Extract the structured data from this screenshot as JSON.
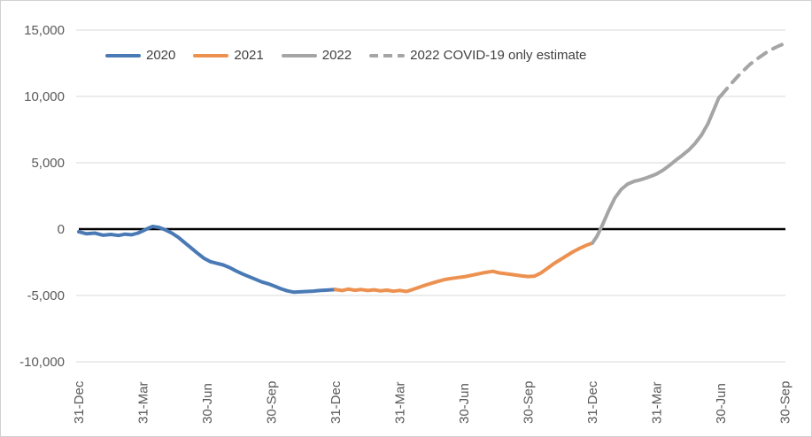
{
  "figure": {
    "kind": "line chart",
    "background": "#ffffff",
    "border_color": "#d0d0d0"
  },
  "colors": {
    "series_2020": "#4A7AB5",
    "series_2021": "#EC9150",
    "series_2022": "#A5A5A5",
    "axis_text": "#595959",
    "legend_text": "#404040",
    "gridline": "#D9D9D9",
    "zero_line": "#000000"
  },
  "chart_data": {
    "type": "line",
    "title": "",
    "legend_position": "top",
    "grid": true,
    "x_axis": {
      "tick_labels": [
        "31-Dec",
        "31-Mar",
        "30-Jun",
        "30-Sep",
        "31-Dec",
        "31-Mar",
        "30-Jun",
        "30-Sep",
        "31-Dec",
        "31-Mar",
        "30-Jun",
        "30-Sep"
      ],
      "label_rotation_deg": -90
    },
    "y_axis": {
      "tick_values": [
        15000,
        10000,
        5000,
        0,
        -5000,
        -10000
      ],
      "tick_labels": [
        "15,000",
        "10,000",
        "5,000",
        "0",
        "-5,000",
        "-10,000"
      ],
      "range": [
        -10000,
        15000
      ],
      "zero_line": true
    },
    "series": [
      {
        "name": "2020",
        "color": "#4A7AB5",
        "style": "solid",
        "points": [
          [
            0,
            -200
          ],
          [
            0.12,
            -350
          ],
          [
            0.25,
            -300
          ],
          [
            0.38,
            -460
          ],
          [
            0.5,
            -400
          ],
          [
            0.62,
            -480
          ],
          [
            0.72,
            -380
          ],
          [
            0.82,
            -430
          ],
          [
            0.92,
            -300
          ],
          [
            1.0,
            -130
          ],
          [
            1.08,
            60
          ],
          [
            1.15,
            200
          ],
          [
            1.25,
            130
          ],
          [
            1.35,
            -60
          ],
          [
            1.45,
            -300
          ],
          [
            1.55,
            -620
          ],
          [
            1.65,
            -1020
          ],
          [
            1.75,
            -1420
          ],
          [
            1.85,
            -1820
          ],
          [
            1.95,
            -2200
          ],
          [
            2.05,
            -2450
          ],
          [
            2.15,
            -2580
          ],
          [
            2.25,
            -2700
          ],
          [
            2.35,
            -2900
          ],
          [
            2.45,
            -3150
          ],
          [
            2.55,
            -3380
          ],
          [
            2.65,
            -3580
          ],
          [
            2.75,
            -3780
          ],
          [
            2.85,
            -3980
          ],
          [
            2.95,
            -4120
          ],
          [
            3.05,
            -4300
          ],
          [
            3.15,
            -4500
          ],
          [
            3.25,
            -4650
          ],
          [
            3.35,
            -4750
          ],
          [
            3.45,
            -4730
          ],
          [
            3.55,
            -4700
          ],
          [
            3.65,
            -4670
          ],
          [
            3.75,
            -4630
          ],
          [
            3.85,
            -4600
          ],
          [
            4.0,
            -4550
          ]
        ]
      },
      {
        "name": "2021",
        "color": "#EC9150",
        "style": "solid",
        "points": [
          [
            4.0,
            -4550
          ],
          [
            4.1,
            -4630
          ],
          [
            4.2,
            -4520
          ],
          [
            4.3,
            -4610
          ],
          [
            4.4,
            -4550
          ],
          [
            4.5,
            -4630
          ],
          [
            4.6,
            -4570
          ],
          [
            4.7,
            -4650
          ],
          [
            4.8,
            -4600
          ],
          [
            4.9,
            -4680
          ],
          [
            5.0,
            -4620
          ],
          [
            5.1,
            -4700
          ],
          [
            5.2,
            -4550
          ],
          [
            5.3,
            -4380
          ],
          [
            5.4,
            -4220
          ],
          [
            5.5,
            -4070
          ],
          [
            5.6,
            -3930
          ],
          [
            5.7,
            -3800
          ],
          [
            5.8,
            -3720
          ],
          [
            5.9,
            -3650
          ],
          [
            6.0,
            -3590
          ],
          [
            6.1,
            -3490
          ],
          [
            6.2,
            -3390
          ],
          [
            6.3,
            -3290
          ],
          [
            6.45,
            -3180
          ],
          [
            6.55,
            -3300
          ],
          [
            6.7,
            -3390
          ],
          [
            6.8,
            -3460
          ],
          [
            6.9,
            -3530
          ],
          [
            7.0,
            -3570
          ],
          [
            7.1,
            -3540
          ],
          [
            7.2,
            -3300
          ],
          [
            7.3,
            -2950
          ],
          [
            7.4,
            -2600
          ],
          [
            7.5,
            -2300
          ],
          [
            7.6,
            -2000
          ],
          [
            7.7,
            -1700
          ],
          [
            7.8,
            -1450
          ],
          [
            7.9,
            -1230
          ],
          [
            8.0,
            -1050
          ]
        ]
      },
      {
        "name": "2022",
        "color": "#A5A5A5",
        "style": "solid",
        "points": [
          [
            8.0,
            -1050
          ],
          [
            8.07,
            -550
          ],
          [
            8.15,
            250
          ],
          [
            8.25,
            1350
          ],
          [
            8.35,
            2350
          ],
          [
            8.45,
            3000
          ],
          [
            8.55,
            3400
          ],
          [
            8.65,
            3600
          ],
          [
            8.75,
            3720
          ],
          [
            8.85,
            3870
          ],
          [
            8.95,
            4060
          ],
          [
            9.0,
            4160
          ],
          [
            9.1,
            4450
          ],
          [
            9.2,
            4800
          ],
          [
            9.3,
            5200
          ],
          [
            9.4,
            5560
          ],
          [
            9.5,
            5960
          ],
          [
            9.6,
            6460
          ],
          [
            9.7,
            7100
          ],
          [
            9.8,
            7950
          ],
          [
            9.9,
            9100
          ],
          [
            9.97,
            9900
          ],
          [
            10.0,
            10050
          ]
        ]
      },
      {
        "name": "2022 COVID-19 only estimate",
        "color": "#A5A5A5",
        "style": "dashed",
        "points": [
          [
            10.0,
            10050
          ],
          [
            10.15,
            10900
          ],
          [
            10.3,
            11700
          ],
          [
            10.45,
            12400
          ],
          [
            10.6,
            12950
          ],
          [
            10.75,
            13450
          ],
          [
            10.9,
            13800
          ],
          [
            11.0,
            14000
          ]
        ]
      }
    ]
  }
}
